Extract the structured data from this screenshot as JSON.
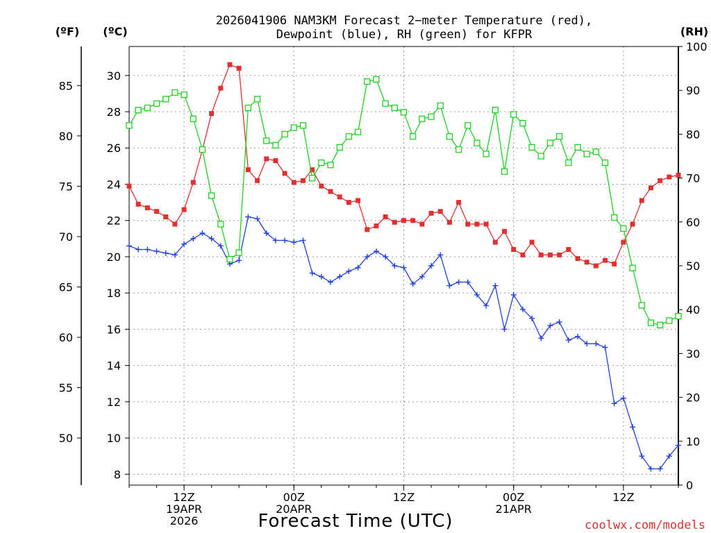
{
  "chart_data": {
    "type": "line",
    "title_lines": [
      "2026041906 NAM3KM Forecast 2−meter Temperature (red),",
      "Dewpoint (blue), RH (green) for KFPR"
    ],
    "xlabel": "Forecast Time (UTC)",
    "credit": "coolwx.com/models",
    "units": {
      "fahrenheit": "(ºF)",
      "celsius": "(ºC)",
      "rh": "(RH)"
    },
    "x": [
      0,
      1,
      2,
      3,
      4,
      5,
      6,
      7,
      8,
      9,
      10,
      11,
      12,
      13,
      14,
      15,
      16,
      17,
      18,
      19,
      20,
      21,
      22,
      23,
      24,
      25,
      26,
      27,
      28,
      29,
      30,
      31,
      32,
      33,
      34,
      35,
      36,
      37,
      38,
      39,
      40,
      41,
      42,
      43,
      44,
      45,
      46,
      47,
      48,
      49,
      50,
      51,
      52,
      53,
      54,
      55,
      56,
      57,
      58,
      59,
      60
    ],
    "x_tick_labels": [
      {
        "x": 6,
        "lines": [
          "12Z",
          "19APR",
          "2026"
        ]
      },
      {
        "x": 18,
        "lines": [
          "00Z",
          "20APR"
        ]
      },
      {
        "x": 30,
        "lines": [
          "12Z"
        ]
      },
      {
        "x": 42,
        "lines": [
          "00Z",
          "21APR"
        ]
      },
      {
        "x": 54,
        "lines": [
          "12Z"
        ]
      }
    ],
    "xlim": [
      0,
      60
    ],
    "celsius_axis": {
      "ylim": [
        7.4,
        31.6
      ],
      "ticks": [
        8,
        10,
        12,
        14,
        16,
        18,
        20,
        22,
        24,
        26,
        28,
        30
      ]
    },
    "fahrenheit_axis": {
      "ticks": [
        50,
        55,
        60,
        65,
        70,
        75,
        80,
        85
      ]
    },
    "rh_axis": {
      "ylim": [
        0,
        100
      ],
      "ticks": [
        0,
        10,
        20,
        30,
        40,
        50,
        60,
        70,
        80,
        90,
        100
      ]
    },
    "grid": true,
    "series": [
      {
        "name": "2-meter Temperature",
        "axis": "celsius",
        "color": "#e03030",
        "marker": "filled-square",
        "values": [
          23.9,
          22.9,
          22.7,
          22.5,
          22.2,
          21.8,
          22.6,
          24.1,
          25.9,
          27.9,
          29.3,
          30.6,
          30.4,
          24.8,
          24.2,
          25.4,
          25.3,
          24.6,
          24.1,
          24.2,
          24.8,
          23.9,
          23.6,
          23.3,
          23.0,
          23.1,
          21.5,
          21.7,
          22.2,
          21.9,
          22.0,
          22.0,
          21.8,
          22.4,
          22.5,
          21.9,
          23.0,
          21.8,
          21.8,
          21.8,
          20.8,
          21.4,
          20.4,
          20.1,
          20.8,
          20.1,
          20.1,
          20.1,
          20.4,
          19.9,
          19.7,
          19.5,
          19.8,
          19.6,
          20.8,
          21.8,
          23.1,
          23.8,
          24.2,
          24.4,
          24.5
        ]
      },
      {
        "name": "Dewpoint",
        "axis": "celsius",
        "color": "#2040e0",
        "marker": "plus",
        "values": [
          20.6,
          20.4,
          20.4,
          20.3,
          20.2,
          20.1,
          20.7,
          21.0,
          21.3,
          21.0,
          20.6,
          19.6,
          19.8,
          22.2,
          22.1,
          21.3,
          20.9,
          20.9,
          20.8,
          20.9,
          19.1,
          18.9,
          18.6,
          18.9,
          19.2,
          19.4,
          20.0,
          20.3,
          20.0,
          19.5,
          19.4,
          18.5,
          18.9,
          19.5,
          20.1,
          18.4,
          18.6,
          18.6,
          17.9,
          17.3,
          18.4,
          16.0,
          17.9,
          17.1,
          16.6,
          15.5,
          16.2,
          16.4,
          15.4,
          15.6,
          15.2,
          15.2,
          15.0,
          11.9,
          12.2,
          10.6,
          9.0,
          8.3,
          8.3,
          9.0,
          9.6
        ]
      },
      {
        "name": "RH",
        "axis": "rh",
        "color": "#20d020",
        "marker": "open-square",
        "values": [
          82,
          85.5,
          86,
          87,
          88,
          89.5,
          89,
          83.5,
          76.5,
          66,
          59.5,
          51.5,
          53,
          86,
          88,
          78.5,
          77.5,
          80,
          81.5,
          82,
          70,
          73.5,
          73,
          77,
          79.5,
          80.5,
          92,
          92.5,
          87,
          86,
          85,
          79.5,
          83.5,
          84,
          86.5,
          79.5,
          76.5,
          82,
          78,
          75.5,
          85.5,
          71.5,
          84.5,
          82.5,
          77,
          75,
          78,
          79.5,
          73.5,
          77,
          75.5,
          76,
          73.5,
          61,
          58.5,
          49.5,
          41,
          37,
          36.5,
          37.5,
          38.5
        ]
      }
    ]
  }
}
